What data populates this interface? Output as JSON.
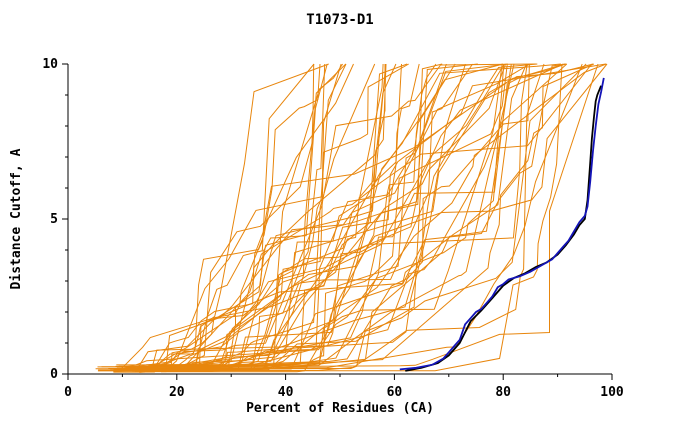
{
  "chart_data": {
    "type": "line",
    "title": "T1073-D1",
    "xlabel": "Percent of Residues (CA)",
    "ylabel": "Distance Cutoff, A",
    "xlim": [
      0,
      100
    ],
    "ylim": [
      0,
      10
    ],
    "x_ticks": [
      0,
      20,
      40,
      60,
      80,
      100
    ],
    "x_minor_ticks": [
      10,
      30,
      50,
      70,
      90
    ],
    "y_ticks": [
      0,
      5,
      10
    ],
    "y_minor_ticks": [
      1,
      2,
      3,
      4,
      6,
      7,
      8,
      9
    ],
    "grid": false,
    "legend": "none",
    "colors": {
      "ensemble": "#e8860d",
      "highlight_blue": "#1414b8",
      "highlight_black": "#000000",
      "axis": "#000000",
      "background": "#ffffff"
    },
    "ensemble": {
      "name": "server-model-curves",
      "description": "bundle of per-model GDT curves",
      "count": 60,
      "seed": 20731,
      "x_start_range": [
        5,
        18
      ],
      "x_top_range": [
        45,
        100
      ]
    },
    "series": [
      {
        "name": "best-model-black",
        "color": "#000000",
        "points": [
          [
            62,
            0.1
          ],
          [
            65,
            0.2
          ],
          [
            68,
            0.35
          ],
          [
            70,
            0.6
          ],
          [
            72,
            1.0
          ],
          [
            74,
            1.7
          ],
          [
            76,
            2.05
          ],
          [
            78,
            2.45
          ],
          [
            80,
            2.85
          ],
          [
            82,
            3.1
          ],
          [
            84,
            3.25
          ],
          [
            86,
            3.45
          ],
          [
            88,
            3.6
          ],
          [
            90,
            3.85
          ],
          [
            91.5,
            4.15
          ],
          [
            93,
            4.5
          ],
          [
            94,
            4.8
          ],
          [
            95,
            5.0
          ],
          [
            95.5,
            5.6
          ],
          [
            96,
            6.8
          ],
          [
            96.3,
            7.6
          ],
          [
            96.7,
            8.3
          ],
          [
            97,
            8.8
          ],
          [
            97.3,
            9.0
          ],
          [
            98,
            9.3
          ]
        ]
      },
      {
        "name": "selected-model-blue",
        "color": "#1414b8",
        "points": [
          [
            61,
            0.15
          ],
          [
            64,
            0.2
          ],
          [
            67,
            0.3
          ],
          [
            69,
            0.5
          ],
          [
            70,
            0.7
          ],
          [
            71,
            0.9
          ],
          [
            72,
            1.1
          ],
          [
            73,
            1.6
          ],
          [
            74,
            1.8
          ],
          [
            75,
            2.0
          ],
          [
            76,
            2.1
          ],
          [
            77,
            2.3
          ],
          [
            78,
            2.5
          ],
          [
            79,
            2.8
          ],
          [
            80,
            2.9
          ],
          [
            81,
            3.05
          ],
          [
            83,
            3.15
          ],
          [
            85,
            3.3
          ],
          [
            87,
            3.5
          ],
          [
            89,
            3.7
          ],
          [
            90,
            3.9
          ],
          [
            91,
            4.1
          ],
          [
            92,
            4.3
          ],
          [
            93,
            4.6
          ],
          [
            94,
            4.9
          ],
          [
            95,
            5.1
          ],
          [
            95.5,
            5.4
          ],
          [
            96,
            6.2
          ],
          [
            96.5,
            7.2
          ],
          [
            97,
            8.0
          ],
          [
            97.5,
            8.7
          ],
          [
            98,
            9.1
          ],
          [
            98.5,
            9.55
          ]
        ]
      }
    ]
  }
}
